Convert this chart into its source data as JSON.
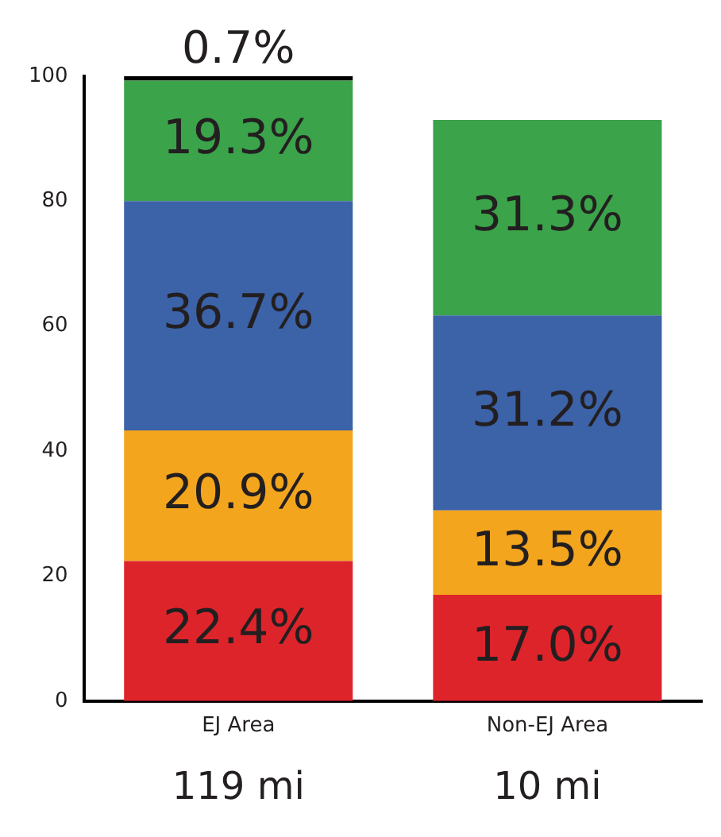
{
  "chart_data": {
    "type": "bar",
    "stacked": true,
    "categories": [
      "EJ Area",
      "Non-EJ Area"
    ],
    "series": [
      {
        "color": "#de242b",
        "values": [
          22.4,
          17.0
        ],
        "value_labels": [
          "22.4%",
          "17.0%"
        ]
      },
      {
        "color": "#f3a51d",
        "values": [
          20.9,
          13.5
        ],
        "value_labels": [
          "20.9%",
          "13.5%"
        ]
      },
      {
        "color": "#3c62a8",
        "values": [
          36.7,
          31.2
        ],
        "value_labels": [
          "36.7%",
          "31.2%"
        ]
      },
      {
        "color": "#3ba34a",
        "values": [
          19.3,
          31.3
        ],
        "value_labels": [
          "19.3%",
          "31.3%"
        ]
      },
      {
        "color": "#000000",
        "values": [
          0.7,
          null
        ],
        "value_labels": [
          "0.7%",
          null
        ]
      }
    ],
    "ylim": [
      0,
      100
    ],
    "yticks": [
      0,
      20,
      40,
      60,
      80,
      100
    ],
    "grid": false,
    "legend": false,
    "annotations": [
      "119 mi",
      "10 mi"
    ]
  }
}
